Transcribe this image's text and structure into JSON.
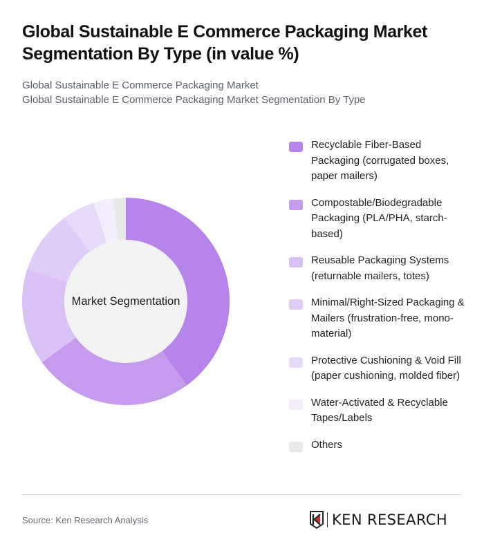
{
  "header": {
    "title": "Global Sustainable E Commerce Packaging Market Segmentation By Type (in value %)",
    "subtitle_line1": "Global Sustainable E Commerce Packaging Market",
    "subtitle_line2": "Global Sustainable E Commerce Packaging Market Segmentation By Type"
  },
  "chart": {
    "center_label": "Market Segmentation"
  },
  "legend": {
    "items": [
      {
        "label": "Recyclable Fiber-Based Packaging (corrugated boxes, paper mailers)",
        "color": "#B583E9"
      },
      {
        "label": "Compostable/Biodegradable Packaging (PLA/PHA, starch-based)",
        "color": "#C49BED"
      },
      {
        "label": "Reusable Packaging Systems (returnable mailers, totes)",
        "color": "#D9C0F5"
      },
      {
        "label": "Minimal/Right-Sized Packaging & Mailers (frustration-free, mono-material)",
        "color": "#DFCCF7"
      },
      {
        "label": "Protective Cushioning & Void Fill (paper cushioning, molded fiber)",
        "color": "#E8DBF9"
      },
      {
        "label": "Water-Activated & Recyclable Tapes/Labels",
        "color": "#F3ECFC"
      },
      {
        "label": "Others",
        "color": "#E9E9E9"
      }
    ]
  },
  "footer": {
    "source": "Source: Ken Research Analysis",
    "logo_text": "KEN RESEARCH"
  },
  "chart_data": {
    "type": "pie",
    "title": "Global Sustainable E Commerce Packaging Market Segmentation By Type (in value %)",
    "subtitle": "Global Sustainable E Commerce Packaging Market Segmentation By Type",
    "center_label": "Market Segmentation",
    "donut": true,
    "legend_position": "right",
    "categories": [
      "Recyclable Fiber-Based Packaging (corrugated boxes, paper mailers)",
      "Compostable/Biodegradable Packaging (PLA/PHA, starch-based)",
      "Reusable Packaging Systems (returnable mailers, totes)",
      "Minimal/Right-Sized Packaging & Mailers (frustration-free, mono-material)",
      "Protective Cushioning & Void Fill (paper cushioning, molded fiber)",
      "Water-Activated & Recyclable Tapes/Labels",
      "Others"
    ],
    "values": [
      40,
      25,
      15,
      10,
      5,
      3,
      2
    ],
    "colors": [
      "#B583E9",
      "#C49BED",
      "#D9C0F5",
      "#DFCCF7",
      "#E8DBF9",
      "#F3ECFC",
      "#E9E9E9"
    ],
    "unit": "%"
  }
}
